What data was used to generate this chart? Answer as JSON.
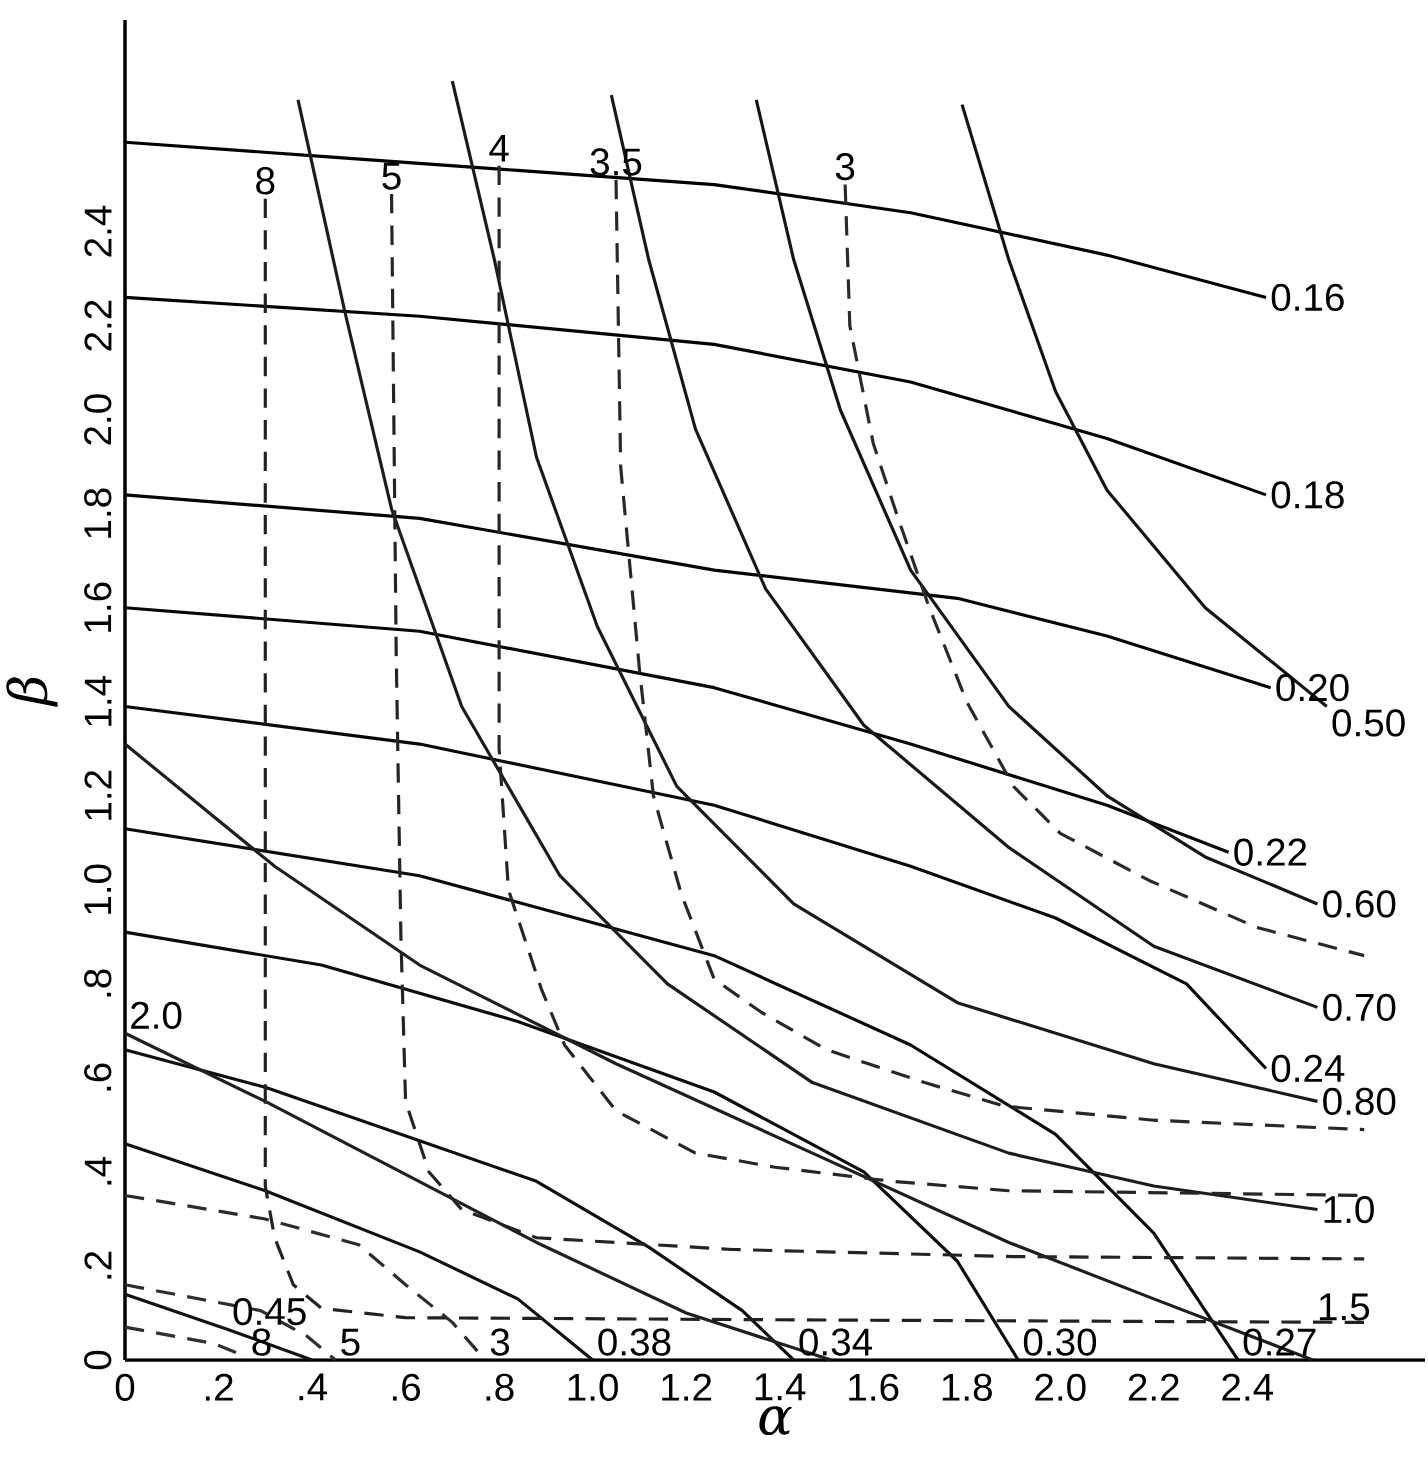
{
  "chart_data": {
    "type": "line",
    "xlabel": "α",
    "ylabel": "β",
    "xlim": [
      0,
      2.78
    ],
    "ylim": [
      0,
      2.85
    ],
    "xticks": [
      0,
      {
        "value": 0.2,
        "label": ".2"
      },
      {
        "value": 0.4,
        "label": ".4"
      },
      {
        "value": 0.6,
        "label": ".6"
      },
      {
        "value": 0.8,
        "label": ".8"
      },
      {
        "value": 1,
        "label": "1.0"
      },
      1.2,
      1.4,
      1.6,
      1.8,
      {
        "value": 2,
        "label": "2.0"
      },
      2.2,
      2.4
    ],
    "yticks": [
      0,
      {
        "value": 0.2,
        "label": ".2"
      },
      {
        "value": 0.4,
        "label": ".4"
      },
      {
        "value": 0.6,
        "label": ".6"
      },
      {
        "value": 0.8,
        "label": ".8"
      },
      {
        "value": 1,
        "label": "1.0"
      },
      1.2,
      1.4,
      1.6,
      1.8,
      {
        "value": 2,
        "label": "2.0"
      },
      2.2,
      2.4
    ],
    "series": [
      {
        "color": "#000000",
        "line_style": "solid",
        "x": [
          0,
          0.42,
          0.84,
          1.26,
          1.68,
          2.1,
          2.44
        ],
        "values": [
          2.59,
          2.56,
          2.53,
          2.5,
          2.44,
          2.35,
          2.26
        ]
      },
      {
        "color": "#020202",
        "line_style": "solid",
        "x": [
          0,
          0.63,
          1.26,
          1.68,
          2.1,
          2.44
        ],
        "values": [
          2.26,
          2.22,
          2.16,
          2.08,
          1.96,
          1.84
        ]
      },
      {
        "color": "#040404",
        "line_style": "solid",
        "x": [
          0,
          0.63,
          1.26,
          1.78,
          2.1,
          2.45
        ],
        "values": [
          1.84,
          1.79,
          1.68,
          1.62,
          1.54,
          1.43
        ]
      },
      {
        "color": "#060606",
        "line_style": "solid",
        "x": [
          0,
          0.63,
          1.26,
          1.68,
          2.1,
          2.36
        ],
        "values": [
          1.6,
          1.55,
          1.43,
          1.31,
          1.18,
          1.08
        ]
      },
      {
        "color": "#080808",
        "line_style": "solid",
        "x": [
          0,
          0.63,
          1.26,
          1.68,
          1.99,
          2.27,
          2.44
        ],
        "values": [
          1.39,
          1.31,
          1.18,
          1.05,
          0.94,
          0.8,
          0.62
        ]
      },
      {
        "color": "#0a0a0a",
        "line_style": "solid",
        "x": [
          0,
          0.63,
          1.26,
          1.68,
          1.99,
          2.2,
          2.38
        ],
        "values": [
          1.13,
          1.03,
          0.86,
          0.67,
          0.48,
          0.27,
          0
        ]
      },
      {
        "color": "#0c0c0c",
        "line_style": "solid",
        "x": [
          0,
          0.42,
          0.84,
          1.26,
          1.58,
          1.78,
          1.91
        ],
        "values": [
          0.91,
          0.84,
          0.72,
          0.57,
          0.4,
          0.21,
          0
        ]
      },
      {
        "color": "#0e0e0e",
        "line_style": "solid",
        "x": [
          0,
          0.3,
          0.88,
          1.12,
          1.32,
          1.43
        ],
        "values": [
          0.66,
          0.58,
          0.38,
          0.24,
          0.105,
          0
        ]
      },
      {
        "color": "#101010",
        "line_style": "solid",
        "x": [
          0,
          0.3,
          0.63,
          0.84,
          1.0
        ],
        "values": [
          0.46,
          0.36,
          0.23,
          0.13,
          0
        ]
      },
      {
        "color": "#121212",
        "line_style": "solid",
        "x": [
          0,
          0.22,
          0.4
        ],
        "values": [
          0.14,
          0.065,
          0
        ]
      },
      {
        "color": "#141414",
        "line_style": "solid",
        "x": [
          1.79,
          1.89,
          1.99,
          2.1,
          2.31,
          2.57
        ],
        "values": [
          2.67,
          2.34,
          2.06,
          1.85,
          1.6,
          1.39
        ]
      },
      {
        "color": "#161616",
        "line_style": "solid",
        "x": [
          1.35,
          1.43,
          1.53,
          1.68,
          1.89,
          2.1,
          2.31,
          2.55
        ],
        "values": [
          2.68,
          2.34,
          2.02,
          1.68,
          1.39,
          1.2,
          1.07,
          0.97
        ]
      },
      {
        "color": "#181818",
        "line_style": "solid",
        "x": [
          1.04,
          1.12,
          1.22,
          1.37,
          1.58,
          1.89,
          2.2,
          2.55
        ],
        "values": [
          2.69,
          2.34,
          1.98,
          1.64,
          1.35,
          1.09,
          0.88,
          0.75
        ]
      },
      {
        "color": "#1a1a1a",
        "line_style": "solid",
        "x": [
          0.7,
          0.79,
          0.88,
          1.01,
          1.18,
          1.43,
          1.78,
          2.2,
          2.55
        ],
        "values": [
          2.72,
          2.34,
          1.92,
          1.56,
          1.22,
          0.97,
          0.76,
          0.63,
          0.55
        ]
      },
      {
        "color": "#1c1c1c",
        "line_style": "solid",
        "x": [
          0.37,
          0.47,
          0.57,
          0.72,
          0.93,
          1.16,
          1.47,
          1.89,
          2.2,
          2.55
        ],
        "values": [
          2.68,
          2.23,
          1.81,
          1.39,
          1.03,
          0.8,
          0.59,
          0.44,
          0.37,
          0.32
        ]
      },
      {
        "color": "#1e1e1e",
        "line_style": "solid",
        "x": [
          0,
          0.32,
          0.63,
          1.05,
          1.47,
          1.89,
          2.2,
          2.54
        ],
        "values": [
          1.31,
          1.05,
          0.84,
          0.63,
          0.44,
          0.25,
          0.13,
          0
        ]
      },
      {
        "color": "#202020",
        "line_style": "solid",
        "x": [
          0,
          0.3,
          0.88,
          1.2,
          1.51
        ],
        "values": [
          0.695,
          0.55,
          0.25,
          0.1,
          0
        ]
      },
      {
        "color": "#222222",
        "line_style": "dashed",
        "x": [
          0.3,
          0.3,
          0.32,
          0.36,
          0.42,
          0.6,
          1.5,
          2.65
        ],
        "values": [
          2.47,
          0.37,
          0.26,
          0.16,
          0.11,
          0.09,
          0.085,
          0.08
        ]
      },
      {
        "color": "#242424",
        "line_style": "dashed",
        "x": [
          0.57,
          0.58,
          0.59,
          0.6,
          0.65,
          0.72,
          0.88,
          1.3,
          1.9,
          2.65
        ],
        "values": [
          2.48,
          1.5,
          0.9,
          0.55,
          0.4,
          0.32,
          0.26,
          0.235,
          0.22,
          0.215
        ]
      },
      {
        "color": "#262626",
        "line_style": "dashed",
        "x": [
          0.8,
          0.8,
          0.82,
          0.89,
          0.94,
          1.05,
          1.22,
          1.39,
          1.64,
          1.89,
          2.65
        ],
        "values": [
          2.54,
          1.3,
          1.0,
          0.79,
          0.67,
          0.53,
          0.44,
          0.41,
          0.38,
          0.36,
          0.35
        ]
      },
      {
        "color": "#282828",
        "line_style": "dashed",
        "x": [
          1.05,
          1.06,
          1.1,
          1.13,
          1.19,
          1.26,
          1.36,
          1.5,
          1.71,
          1.88,
          2.2,
          2.65
        ],
        "values": [
          2.51,
          1.9,
          1.47,
          1.2,
          0.99,
          0.81,
          0.74,
          0.66,
          0.59,
          0.54,
          0.51,
          0.49
        ]
      },
      {
        "color": "#2a2a2a",
        "line_style": "dashed",
        "x": [
          1.54,
          1.55,
          1.6,
          1.65,
          1.72,
          1.8,
          1.9,
          2.0,
          2.19,
          2.42,
          2.65
        ],
        "values": [
          2.5,
          2.2,
          1.95,
          1.8,
          1.6,
          1.4,
          1.22,
          1.12,
          1.02,
          0.92,
          0.86
        ]
      },
      {
        "color": "#2c2c2c",
        "line_style": "dashed",
        "x": [
          0,
          0.3,
          0.5,
          0.6,
          0.7,
          0.77
        ],
        "values": [
          0.35,
          0.3,
          0.245,
          0.16,
          0.08,
          0
        ]
      },
      {
        "color": "#2e2e2e",
        "line_style": "dashed",
        "x": [
          0,
          0.29,
          0.39,
          0.45
        ],
        "values": [
          0.16,
          0.105,
          0.05,
          0
        ]
      },
      {
        "color": "#303030",
        "line_style": "dashed",
        "x": [
          0,
          0.19,
          0.24,
          0.26
        ],
        "values": [
          0.07,
          0.035,
          0.015,
          0
        ]
      }
    ],
    "annotations": [
      {
        "text": "0.16",
        "x": 2.44,
        "y": 2.26
      },
      {
        "text": "0.18",
        "x": 2.44,
        "y": 1.84
      },
      {
        "text": "0.20",
        "x": 2.45,
        "y": 1.43
      },
      {
        "text": "0.50",
        "x": 2.57,
        "y": 1.39
      },
      {
        "text": "0.22",
        "x": 2.36,
        "y": 1.08
      },
      {
        "text": "0.60",
        "x": 2.55,
        "y": 0.97
      },
      {
        "text": "0.70",
        "x": 2.55,
        "y": 0.75
      },
      {
        "text": "0.24",
        "x": 2.44,
        "y": 0.62
      },
      {
        "text": "0.80",
        "x": 2.55,
        "y": 0.55
      },
      {
        "text": "1.0",
        "x": 2.55,
        "y": 0.32
      },
      {
        "text": "0.27",
        "x": 2.38,
        "y": 0
      },
      {
        "text": "1.5",
        "x": 2.54,
        "y": 0
      },
      {
        "text": "0.30",
        "x": 1.91,
        "y": 0
      },
      {
        "text": "0.34",
        "x": 1.43,
        "y": 0
      },
      {
        "text": "0.38",
        "x": 1.0,
        "y": 0
      },
      {
        "text": "0.45",
        "x": 0.22,
        "y": 0.065
      },
      {
        "text": "2.0",
        "x": 0,
        "y": 0.695
      },
      {
        "text": "8",
        "x": 0.26,
        "y": 0
      },
      {
        "text": "5",
        "x": 0.45,
        "y": 0
      },
      {
        "text": "3",
        "x": 0.77,
        "y": 0
      },
      {
        "text": "8",
        "x": 0.3,
        "y": 2.47
      },
      {
        "text": "5",
        "x": 0.57,
        "y": 2.48
      },
      {
        "text": "4",
        "x": 0.8,
        "y": 2.54
      },
      {
        "text": "3.5",
        "x": 1.05,
        "y": 2.51
      },
      {
        "text": "3",
        "x": 1.54,
        "y": 2.5
      }
    ]
  }
}
